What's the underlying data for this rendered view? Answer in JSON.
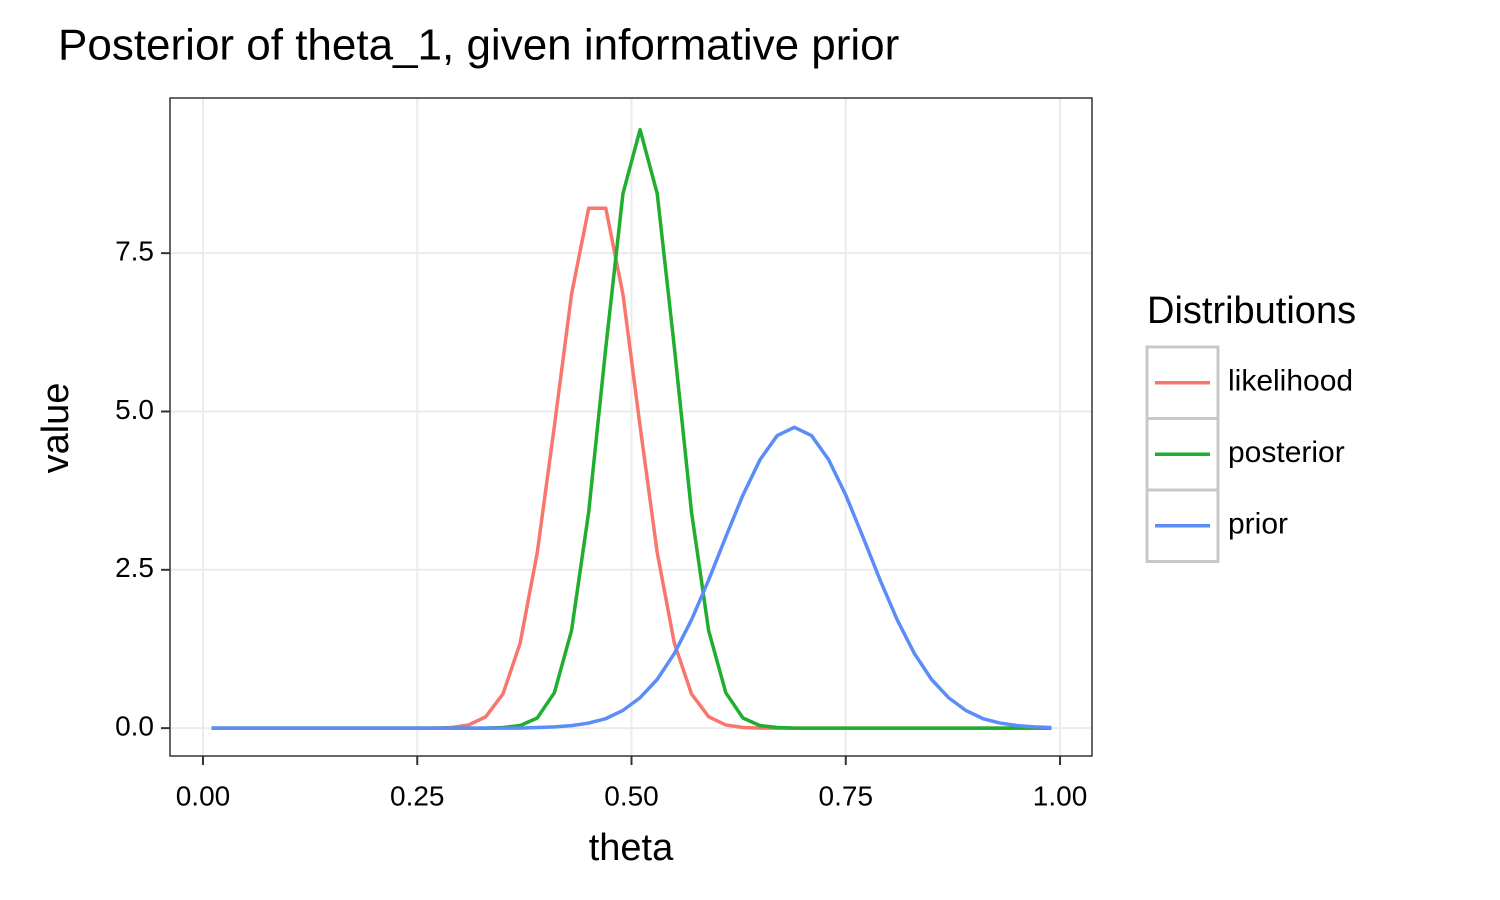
{
  "chart_data": {
    "type": "line",
    "title": "Posterior of theta_1, given informative prior",
    "xlabel": "theta",
    "ylabel": "value",
    "legend_title": "Distributions",
    "legend": "right",
    "grid": true,
    "x": [
      0.01,
      0.03,
      0.05,
      0.07,
      0.09,
      0.11,
      0.13,
      0.15,
      0.17,
      0.19,
      0.21,
      0.23,
      0.25,
      0.27,
      0.29,
      0.31,
      0.33,
      0.35,
      0.37,
      0.39,
      0.41,
      0.43,
      0.45,
      0.47,
      0.49,
      0.51,
      0.53,
      0.55,
      0.57,
      0.59,
      0.61,
      0.63,
      0.65,
      0.67,
      0.69,
      0.71,
      0.73,
      0.75,
      0.77,
      0.79,
      0.81,
      0.83,
      0.85,
      0.87,
      0.89,
      0.91,
      0.93,
      0.95,
      0.97,
      0.99
    ],
    "series": [
      {
        "name": "likelihood",
        "color": "#f8766d",
        "values": [
          0,
          0,
          0,
          0,
          0,
          0,
          0,
          0,
          0,
          0,
          0,
          0,
          0,
          0,
          0.01,
          0.05,
          0.18,
          0.54,
          1.34,
          2.77,
          4.77,
          6.85,
          8.21,
          8.21,
          6.85,
          4.77,
          2.77,
          1.34,
          0.54,
          0.18,
          0.05,
          0.01,
          0,
          0,
          0,
          0,
          0,
          0,
          0,
          0,
          0,
          0,
          0,
          0,
          0,
          0,
          0,
          0,
          0,
          0
        ]
      },
      {
        "name": "posterior",
        "color": "#1fae2e",
        "values": [
          0,
          0,
          0,
          0,
          0,
          0,
          0,
          0,
          0,
          0,
          0,
          0,
          0,
          0,
          0,
          0,
          0,
          0.01,
          0.04,
          0.16,
          0.56,
          1.54,
          3.41,
          6.01,
          8.44,
          9.45,
          8.44,
          6.01,
          3.41,
          1.54,
          0.56,
          0.16,
          0.04,
          0.01,
          0,
          0,
          0,
          0,
          0,
          0,
          0,
          0,
          0,
          0,
          0,
          0,
          0,
          0,
          0,
          0
        ]
      },
      {
        "name": "prior",
        "color": "#5b8cf8",
        "values": [
          0,
          0,
          0,
          0,
          0,
          0,
          0,
          0,
          0,
          0,
          0,
          0,
          0,
          0,
          0,
          0,
          0,
          0,
          0,
          0.01,
          0.02,
          0.04,
          0.08,
          0.15,
          0.28,
          0.48,
          0.77,
          1.18,
          1.71,
          2.34,
          3.02,
          3.68,
          4.24,
          4.62,
          4.75,
          4.62,
          4.24,
          3.68,
          3.02,
          2.34,
          1.71,
          1.18,
          0.77,
          0.48,
          0.28,
          0.15,
          0.08,
          0.04,
          0.02,
          0.01
        ]
      }
    ],
    "xlim": [
      -0.0385,
      1.0373
    ],
    "xticks": [
      {
        "value": 0,
        "label": "0.00"
      },
      {
        "value": 0.25,
        "label": "0.25"
      },
      {
        "value": 0.5,
        "label": "0.50"
      },
      {
        "value": 0.75,
        "label": "0.75"
      },
      {
        "value": 1,
        "label": "1.00"
      }
    ],
    "ylim": [
      -0.44,
      9.95
    ],
    "yticks": [
      {
        "value": 0,
        "label": "0.0"
      },
      2.5,
      {
        "value": 5,
        "label": "5.0"
      },
      7.5
    ]
  }
}
